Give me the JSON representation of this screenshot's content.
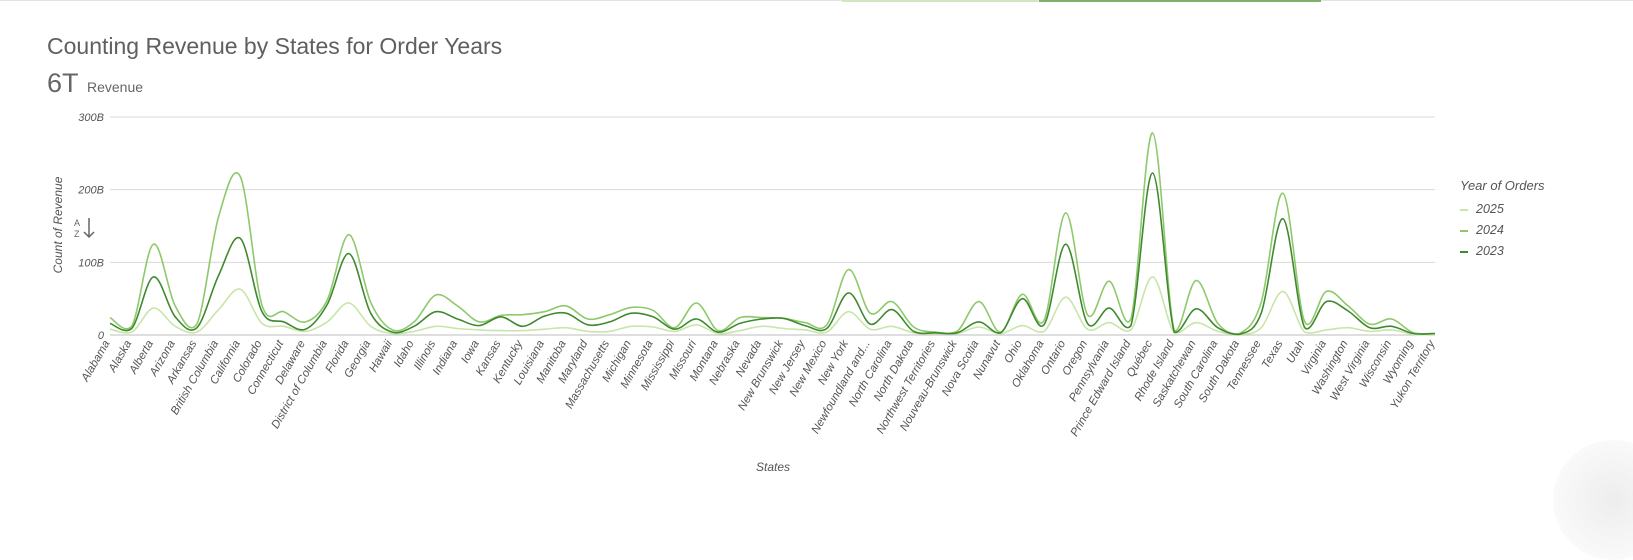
{
  "header": {
    "title": "Counting Revenue by States for Order Years",
    "kpi_value": "6T",
    "kpi_label": "Revenue"
  },
  "legend": {
    "title": "Year of Orders",
    "items": [
      {
        "label": "2025",
        "color": "#c7e6a8"
      },
      {
        "label": "2024",
        "color": "#8dc96b"
      },
      {
        "label": "2023",
        "color": "#3f8a2e"
      }
    ]
  },
  "icons": {
    "sort": "sort-az-icon"
  },
  "chart_data": {
    "type": "line",
    "xlabel": "States",
    "ylabel": "Count of Revenue",
    "y_ticks": [
      "0",
      "100B",
      "200B",
      "300B"
    ],
    "ylim": [
      0,
      300
    ],
    "grid": true,
    "legend_position": "right",
    "categories": [
      "Alabama",
      "Alaska",
      "Alberta",
      "Arizona",
      "Arkansas",
      "British Columbia",
      "California",
      "Colorado",
      "Connecticut",
      "Delaware",
      "District of Columbia",
      "Florida",
      "Georgia",
      "Hawaii",
      "Idaho",
      "Illinois",
      "Indiana",
      "Iowa",
      "Kansas",
      "Kentucky",
      "Louisiana",
      "Manitoba",
      "Maryland",
      "Massachusetts",
      "Michigan",
      "Minnesota",
      "Mississippi",
      "Missouri",
      "Montana",
      "Nebraska",
      "Nevada",
      "New Brunswick",
      "New Jersey",
      "New Mexico",
      "New York",
      "Newfoundland and...",
      "North Carolina",
      "North Dakota",
      "Northwest Territories",
      "Nouveau-Brunswick",
      "Nova Scotia",
      "Nunavut",
      "Ohio",
      "Oklahoma",
      "Ontario",
      "Oregon",
      "Pennsylvania",
      "Prince Edward Island",
      "Québec",
      "Rhode Island",
      "Saskatchewan",
      "South Carolina",
      "South Dakota",
      "Tennessee",
      "Texas",
      "Utah",
      "Virginia",
      "Washington",
      "West Virginia",
      "Wisconsin",
      "Wyoming",
      "Yukon Territory"
    ],
    "series": [
      {
        "name": "2025",
        "color": "#c7e6a8",
        "values": [
          8,
          4,
          37,
          12,
          4,
          35,
          63,
          16,
          12,
          5,
          18,
          44,
          12,
          2,
          5,
          12,
          9,
          7,
          6,
          6,
          8,
          10,
          5,
          5,
          12,
          11,
          5,
          14,
          2,
          6,
          12,
          9,
          7,
          4,
          32,
          8,
          12,
          3,
          2,
          2,
          11,
          2,
          13,
          5,
          52,
          8,
          17,
          7,
          80,
          3,
          17,
          5,
          1,
          10,
          60,
          4,
          7,
          10,
          5,
          7,
          1,
          1
        ]
      },
      {
        "name": "2024",
        "color": "#8dc96b",
        "values": [
          24,
          12,
          125,
          40,
          15,
          163,
          218,
          41,
          32,
          18,
          48,
          138,
          45,
          7,
          18,
          55,
          40,
          18,
          27,
          28,
          32,
          40,
          22,
          28,
          38,
          34,
          10,
          44,
          6,
          24,
          24,
          23,
          17,
          14,
          90,
          30,
          46,
          11,
          4,
          5,
          46,
          4,
          56,
          20,
          168,
          28,
          74,
          22,
          278,
          6,
          75,
          16,
          2,
          45,
          195,
          18,
          60,
          40,
          15,
          22,
          3,
          2
        ]
      },
      {
        "name": "2023",
        "color": "#3f8a2e",
        "values": [
          16,
          9,
          80,
          25,
          10,
          82,
          133,
          32,
          18,
          8,
          42,
          112,
          30,
          4,
          12,
          32,
          22,
          13,
          25,
          12,
          26,
          30,
          14,
          18,
          30,
          25,
          8,
          22,
          4,
          16,
          22,
          23,
          13,
          9,
          58,
          15,
          35,
          5,
          3,
          3,
          18,
          3,
          50,
          14,
          125,
          16,
          37,
          13,
          223,
          4,
          36,
          10,
          1,
          30,
          160,
          10,
          46,
          33,
          10,
          12,
          2,
          2
        ]
      }
    ]
  }
}
